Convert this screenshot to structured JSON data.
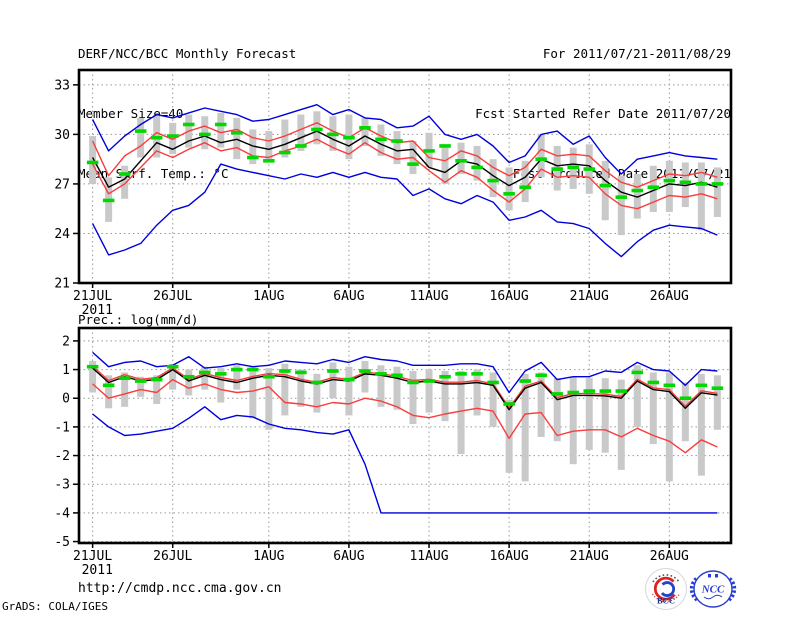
{
  "header": {
    "title": "DERF/NCC/BCC Monthly Forecast",
    "member_size": "Member Size=40",
    "for_range": "For 2011/07/21-2011/08/29",
    "refer_date": "Fcst Started Refer Date 2011/07/20",
    "produced_date": "Fcst Produced Date 2011/07/21"
  },
  "footer": {
    "url": "http://cmdp.ncc.cma.gov.cn",
    "credit": "GrADS: COLA/IGES",
    "logos": [
      {
        "label": "BCC"
      },
      {
        "label": "NCC"
      }
    ]
  },
  "colors": {
    "line_blue": "#0000dd",
    "line_red": "#fa3c3c",
    "line_black": "#000000",
    "obs_green": "#00d800",
    "spread_gray": "#c9c9c9",
    "grid_gray": "#999999",
    "frame_black": "#000000"
  },
  "chart_data": [
    {
      "type": "line",
      "title": "Mean Surf. Temp.: °C",
      "ylabel": "Mean Surf. Temp. (°C)",
      "x_tick_days": [
        0,
        5,
        11,
        16,
        21,
        26,
        31,
        36
      ],
      "x_tick_labels": [
        "21JUL",
        "26JUL",
        "1AUG",
        "6AUG",
        "11AUG",
        "16AUG",
        "21AUG",
        "26AUG"
      ],
      "x_sub_label": "2011",
      "y_ticks": [
        21,
        24,
        27,
        30,
        33
      ],
      "ylim": [
        21,
        33.9
      ],
      "grid": true,
      "series": [
        {
          "name": "ensemble-max",
          "color": "#0000dd",
          "values": [
            30.9,
            29.0,
            29.9,
            30.6,
            31.2,
            31.0,
            31.3,
            31.6,
            31.4,
            31.2,
            30.8,
            30.9,
            31.2,
            31.5,
            31.8,
            31.2,
            31.5,
            31.0,
            30.9,
            30.4,
            30.5,
            31.1,
            30.0,
            29.7,
            30.0,
            29.3,
            28.3,
            28.7,
            30.0,
            30.2,
            29.4,
            29.9,
            28.6,
            27.6,
            28.5,
            28.7,
            28.9,
            28.7,
            28.6,
            28.5
          ]
        },
        {
          "name": "ensemble-min",
          "color": "#0000dd",
          "values": [
            24.6,
            22.7,
            23.0,
            23.4,
            24.5,
            25.4,
            25.7,
            26.5,
            28.2,
            27.9,
            27.7,
            27.5,
            27.3,
            27.6,
            27.4,
            27.7,
            27.4,
            27.7,
            27.4,
            27.3,
            26.3,
            26.7,
            26.1,
            25.8,
            26.3,
            25.9,
            24.8,
            25.0,
            25.4,
            24.7,
            24.6,
            24.3,
            23.4,
            22.6,
            23.5,
            24.2,
            24.5,
            24.4,
            24.3,
            23.9
          ]
        },
        {
          "name": "upper-range",
          "color": "#fa3c3c",
          "values": [
            29.6,
            27.5,
            28.7,
            29.3,
            30.1,
            29.7,
            30.2,
            30.5,
            30.1,
            30.3,
            29.8,
            29.6,
            29.9,
            30.3,
            30.7,
            30.2,
            29.8,
            30.4,
            29.9,
            29.5,
            29.6,
            28.6,
            28.4,
            29.0,
            28.7,
            28.0,
            27.5,
            28.0,
            29.1,
            28.7,
            28.8,
            28.7,
            27.8,
            27.1,
            26.8,
            27.2,
            27.6,
            27.5,
            27.7,
            27.4
          ]
        },
        {
          "name": "lower-range",
          "color": "#fa3c3c",
          "values": [
            28.2,
            26.4,
            27.0,
            28.0,
            29.0,
            28.6,
            29.1,
            29.5,
            29.0,
            29.2,
            28.7,
            28.6,
            29.0,
            29.3,
            29.7,
            29.2,
            28.8,
            29.5,
            28.9,
            28.5,
            28.6,
            27.8,
            27.1,
            27.8,
            27.4,
            26.6,
            25.9,
            26.7,
            27.9,
            27.4,
            27.5,
            27.4,
            26.4,
            25.7,
            25.5,
            25.9,
            26.3,
            26.2,
            26.4,
            26.1
          ]
        },
        {
          "name": "ensemble-mean",
          "color": "#000000",
          "values": [
            28.6,
            26.8,
            27.3,
            28.4,
            29.5,
            29.1,
            29.6,
            29.9,
            29.5,
            29.7,
            29.3,
            29.1,
            29.4,
            29.8,
            30.2,
            29.7,
            29.3,
            29.9,
            29.4,
            29.0,
            29.1,
            28.0,
            27.7,
            28.4,
            28.2,
            27.5,
            26.9,
            27.4,
            28.5,
            28.1,
            28.2,
            28.1,
            27.2,
            26.5,
            26.2,
            26.6,
            27.0,
            26.9,
            27.1,
            26.8
          ]
        },
        {
          "name": "climatology-obs",
          "color": "#00d800",
          "style": "dashes",
          "values": [
            28.3,
            26.0,
            27.6,
            30.2,
            29.8,
            29.9,
            30.6,
            30.0,
            30.6,
            30.1,
            28.6,
            28.4,
            28.9,
            29.3,
            30.3,
            30.0,
            29.8,
            30.4,
            29.7,
            29.6,
            28.2,
            29.0,
            29.3,
            28.4,
            28.0,
            27.2,
            26.4,
            26.8,
            28.5,
            27.9,
            28.0,
            27.9,
            26.9,
            26.2,
            26.6,
            26.8,
            27.2,
            27.1,
            27.0,
            27.0
          ]
        }
      ],
      "spread_bars": {
        "name": "ensemble-spread-bar",
        "color": "#c9c9c9",
        "ranges": [
          [
            27.0,
            29.9
          ],
          [
            24.7,
            27.4
          ],
          [
            26.1,
            28.1
          ],
          [
            28.6,
            31.0
          ],
          [
            28.6,
            31.2
          ],
          [
            28.8,
            30.7
          ],
          [
            29.2,
            31.2
          ],
          [
            29.1,
            31.1
          ],
          [
            29.2,
            31.3
          ],
          [
            28.5,
            31.0
          ],
          [
            28.2,
            30.3
          ],
          [
            28.4,
            30.2
          ],
          [
            28.6,
            30.9
          ],
          [
            29.0,
            31.2
          ],
          [
            29.4,
            31.4
          ],
          [
            29.0,
            31.1
          ],
          [
            28.5,
            31.2
          ],
          [
            29.3,
            31.0
          ],
          [
            28.7,
            30.6
          ],
          [
            28.2,
            30.2
          ],
          [
            27.6,
            29.6
          ],
          [
            28.0,
            30.1
          ],
          [
            27.0,
            29.2
          ],
          [
            27.6,
            29.5
          ],
          [
            27.2,
            29.3
          ],
          [
            26.2,
            28.5
          ],
          [
            25.4,
            28.0
          ],
          [
            25.9,
            28.4
          ],
          [
            27.4,
            30.0
          ],
          [
            26.6,
            29.3
          ],
          [
            26.7,
            29.2
          ],
          [
            26.4,
            29.4
          ],
          [
            24.8,
            28.4
          ],
          [
            23.9,
            27.5
          ],
          [
            24.9,
            27.6
          ],
          [
            25.3,
            28.1
          ],
          [
            25.3,
            28.4
          ],
          [
            25.6,
            28.3
          ],
          [
            24.2,
            28.3
          ],
          [
            25.0,
            28.0
          ]
        ]
      }
    },
    {
      "type": "line",
      "title": "Prec.: log(mm/d)",
      "ylabel": "Prec. log(mm/d)",
      "x_tick_days": [
        0,
        5,
        11,
        16,
        21,
        26,
        31,
        36
      ],
      "x_tick_labels": [
        "21JUL",
        "26JUL",
        "1AUG",
        "6AUG",
        "11AUG",
        "16AUG",
        "21AUG",
        "26AUG"
      ],
      "x_sub_label": "2011",
      "y_ticks": [
        2,
        1,
        0,
        -1,
        -2,
        -3,
        -4,
        -5
      ],
      "ylim": [
        -5.05,
        2.45
      ],
      "grid": true,
      "series": [
        {
          "name": "ensemble-max",
          "color": "#0000dd",
          "values": [
            1.6,
            1.1,
            1.25,
            1.3,
            1.1,
            1.15,
            1.45,
            1.05,
            1.1,
            1.2,
            1.1,
            1.15,
            1.3,
            1.25,
            1.2,
            1.35,
            1.25,
            1.45,
            1.35,
            1.3,
            1.15,
            1.15,
            1.15,
            1.2,
            1.2,
            1.1,
            0.2,
            0.95,
            1.25,
            0.65,
            0.75,
            0.75,
            0.95,
            0.9,
            1.25,
            1.0,
            0.95,
            0.45,
            1.0,
            0.95
          ]
        },
        {
          "name": "ensemble-min",
          "color": "#0000dd",
          "values": [
            -0.55,
            -1.0,
            -1.3,
            -1.25,
            -1.15,
            -1.05,
            -0.7,
            -0.3,
            -0.75,
            -0.6,
            -0.65,
            -0.9,
            -1.05,
            -1.1,
            -1.2,
            -1.25,
            -1.1,
            -2.3,
            -4.0,
            -4.0,
            -4.0,
            -4.0,
            -4.0,
            -4.0,
            -4.0,
            -4.0,
            -4.0,
            -4.0,
            -4.0,
            -4.0,
            -4.0,
            -4.0,
            -4.0,
            -4.0,
            -4.0,
            -4.0,
            -4.0,
            -4.0,
            -4.0,
            -4.0
          ]
        },
        {
          "name": "upper-range",
          "color": "#fa3c3c",
          "values": [
            1.12,
            0.62,
            0.82,
            0.66,
            0.72,
            1.06,
            0.66,
            0.86,
            0.72,
            0.62,
            0.76,
            0.86,
            0.82,
            0.66,
            0.56,
            0.72,
            0.66,
            0.9,
            0.86,
            0.76,
            0.62,
            0.66,
            0.56,
            0.56,
            0.62,
            0.5,
            -0.33,
            0.42,
            0.6,
            0.02,
            0.16,
            0.16,
            0.14,
            0.06,
            0.66,
            0.36,
            0.3,
            -0.28,
            0.26,
            0.17
          ]
        },
        {
          "name": "lower-range",
          "color": "#fa3c3c",
          "values": [
            0.5,
            0.0,
            0.15,
            0.3,
            0.2,
            0.65,
            0.35,
            0.5,
            0.3,
            0.2,
            0.25,
            0.4,
            -0.15,
            -0.2,
            -0.3,
            -0.15,
            -0.2,
            0.0,
            -0.1,
            -0.3,
            -0.6,
            -0.68,
            -0.55,
            -0.45,
            -0.35,
            -0.45,
            -1.4,
            -0.55,
            -0.5,
            -1.3,
            -1.15,
            -1.1,
            -1.1,
            -1.35,
            -1.05,
            -1.3,
            -1.5,
            -1.9,
            -1.45,
            -1.7
          ]
        },
        {
          "name": "ensemble-mean",
          "color": "#000000",
          "values": [
            1.05,
            0.55,
            0.75,
            0.6,
            0.65,
            1.0,
            0.6,
            0.8,
            0.65,
            0.55,
            0.7,
            0.8,
            0.75,
            0.6,
            0.5,
            0.65,
            0.6,
            0.85,
            0.8,
            0.7,
            0.55,
            0.6,
            0.5,
            0.5,
            0.55,
            0.45,
            -0.4,
            0.35,
            0.55,
            -0.05,
            0.1,
            0.1,
            0.08,
            0.0,
            0.6,
            0.3,
            0.23,
            -0.35,
            0.19,
            0.11
          ]
        },
        {
          "name": "climatology-obs",
          "color": "#00d800",
          "style": "dashes",
          "values": [
            1.1,
            0.45,
            0.7,
            0.6,
            0.65,
            1.1,
            0.75,
            0.9,
            0.85,
            1.0,
            1.0,
            0.75,
            0.95,
            0.9,
            0.55,
            0.95,
            0.65,
            0.95,
            0.85,
            0.8,
            0.55,
            0.6,
            0.75,
            0.85,
            0.85,
            0.55,
            -0.2,
            0.6,
            0.8,
            0.15,
            0.2,
            0.25,
            0.25,
            0.25,
            0.9,
            0.55,
            0.45,
            0.0,
            0.45,
            0.35
          ]
        }
      ],
      "spread_bars": {
        "name": "ensemble-spread-bar",
        "color": "#c9c9c9",
        "ranges": [
          [
            0.2,
            1.3
          ],
          [
            -0.35,
            0.8
          ],
          [
            -0.3,
            0.9
          ],
          [
            0.05,
            0.75
          ],
          [
            -0.2,
            0.8
          ],
          [
            0.3,
            1.2
          ],
          [
            0.1,
            1.0
          ],
          [
            0.3,
            1.1
          ],
          [
            -0.15,
            1.05
          ],
          [
            0.3,
            1.15
          ],
          [
            -0.7,
            1.1
          ],
          [
            -1.1,
            1.05
          ],
          [
            -0.6,
            1.2
          ],
          [
            -0.3,
            1.0
          ],
          [
            -0.5,
            0.85
          ],
          [
            0.0,
            1.25
          ],
          [
            -0.6,
            1.1
          ],
          [
            0.2,
            1.3
          ],
          [
            -0.3,
            1.15
          ],
          [
            -0.4,
            1.1
          ],
          [
            -0.9,
            0.95
          ],
          [
            -0.5,
            1.0
          ],
          [
            -0.8,
            0.95
          ],
          [
            -1.95,
            0.95
          ],
          [
            -0.6,
            1.0
          ],
          [
            -1.0,
            0.9
          ],
          [
            -2.6,
            -0.05
          ],
          [
            -2.9,
            0.85
          ],
          [
            -1.35,
            0.9
          ],
          [
            -1.5,
            0.7
          ],
          [
            -2.3,
            0.75
          ],
          [
            -1.8,
            0.7
          ],
          [
            -1.9,
            0.7
          ],
          [
            -2.5,
            0.65
          ],
          [
            -1.0,
            1.15
          ],
          [
            -1.6,
            0.9
          ],
          [
            -2.9,
            0.9
          ],
          [
            -1.5,
            0.55
          ],
          [
            -2.7,
            0.85
          ],
          [
            -1.1,
            0.8
          ]
        ]
      }
    }
  ]
}
